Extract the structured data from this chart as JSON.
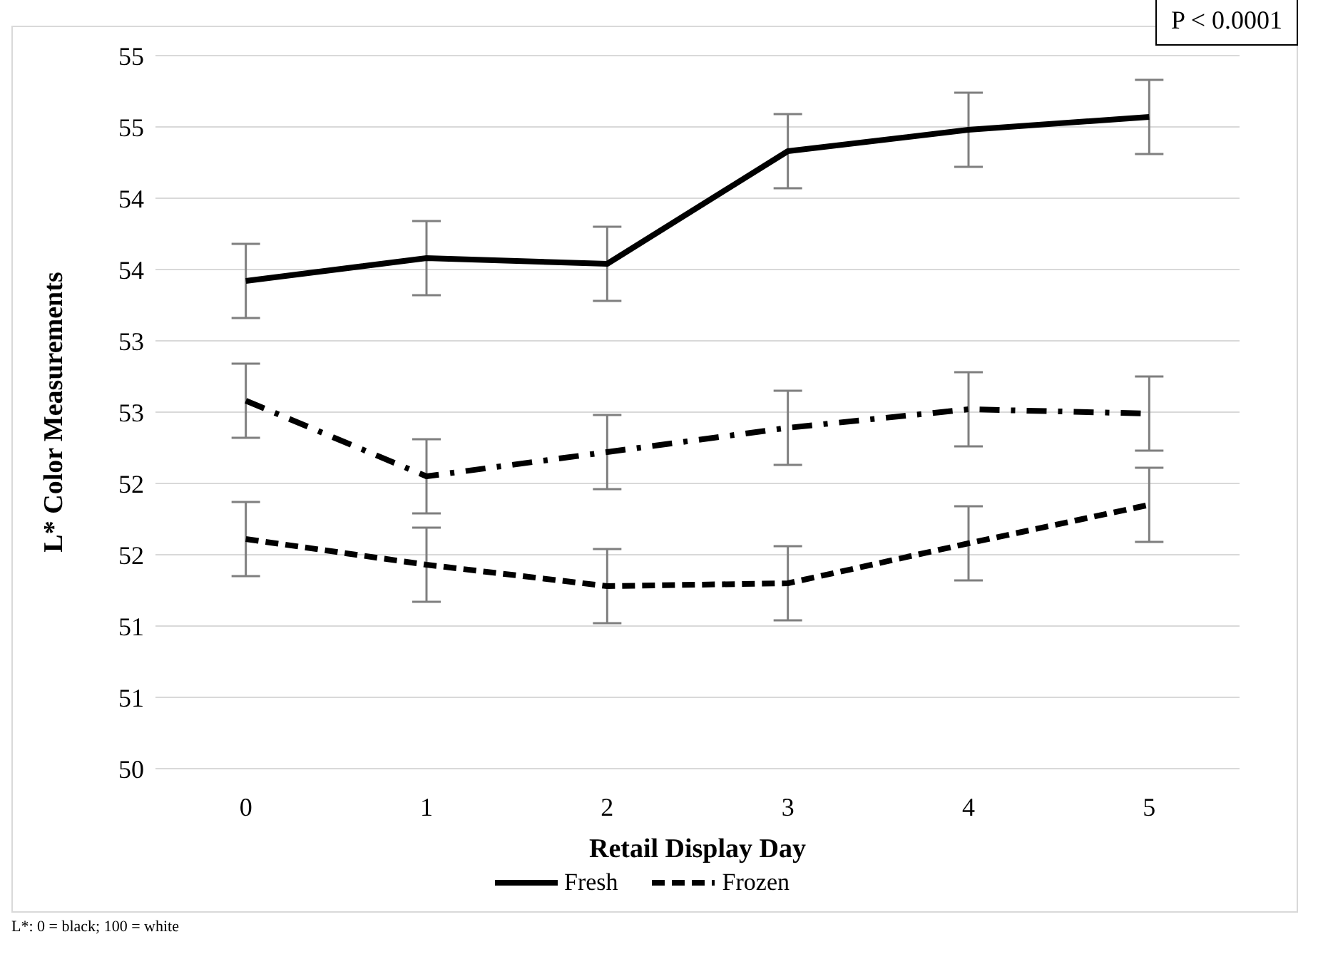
{
  "chart_data": {
    "type": "line",
    "ylabel": "L* Color Measurements",
    "xlabel": "Retail Display Day",
    "categories": [
      "0",
      "1",
      "2",
      "3",
      "4",
      "5"
    ],
    "series": [
      {
        "name": "Fresh",
        "color": "#000000",
        "line_style": "solid",
        "values": [
          53.42,
          53.58,
          53.54,
          54.33,
          54.48,
          54.57
        ],
        "errors": [
          0.26,
          0.26,
          0.26,
          0.26,
          0.26,
          0.26
        ]
      },
      {
        "name": "Frozen",
        "color": "#000000",
        "line_style": "dashed",
        "values": [
          51.61,
          51.43,
          51.28,
          51.3,
          51.58,
          51.85
        ],
        "errors": [
          0.26,
          0.26,
          0.26,
          0.26,
          0.26,
          0.26
        ]
      },
      {
        "color": "#000000",
        "line_style": "dashdot",
        "values": [
          52.58,
          52.05,
          52.22,
          52.39,
          52.52,
          52.49
        ],
        "errors": [
          0.26,
          0.26,
          0.26,
          0.26,
          0.26,
          0.26
        ]
      }
    ],
    "ylim": [
      50,
      55
    ],
    "yticks": [
      50,
      {
        "value": 50.5,
        "label": "51"
      },
      51,
      {
        "value": 51.5,
        "label": "52"
      },
      52,
      {
        "value": 52.5,
        "label": "53"
      },
      53,
      {
        "value": 53.5,
        "label": "54"
      },
      54,
      {
        "value": 54.5,
        "label": "55"
      },
      55
    ],
    "grid": "y",
    "legend": "bottom",
    "marker": "none",
    "annotations": [
      "P < 0.0001",
      "L*: 0 = black; 100 = white"
    ]
  }
}
